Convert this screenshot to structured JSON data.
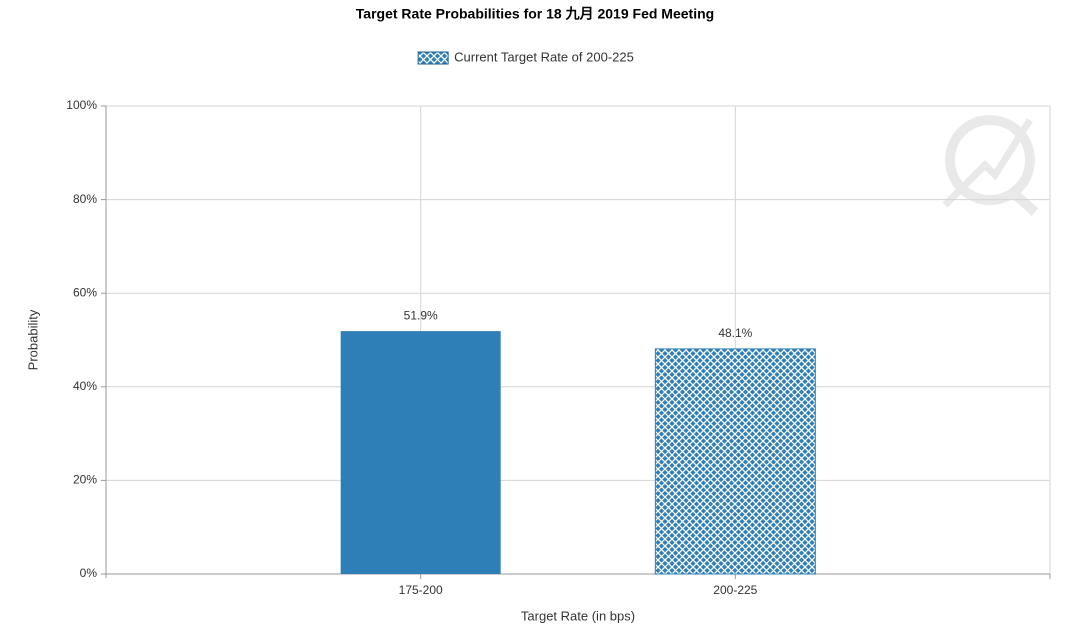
{
  "chart_data": {
    "type": "bar",
    "title": "Target Rate Probabilities for 18 九月 2019 Fed Meeting",
    "legend": {
      "label": "Current Target Rate of 200-225",
      "hatched": true
    },
    "x_label": "Target Rate (in bps)",
    "y_label": "Probability",
    "categories": [
      "175-200",
      "200-225"
    ],
    "values": [
      51.9,
      48.1
    ],
    "value_labels": [
      "51.9%",
      "48.1%"
    ],
    "hatched": [
      false,
      true
    ],
    "color": "#2e7fb8",
    "ylim": [
      0,
      100
    ],
    "yticks": [
      {
        "value": 0,
        "label": "0%"
      },
      {
        "value": 20,
        "label": "20%"
      },
      {
        "value": 40,
        "label": "40%"
      },
      {
        "value": 60,
        "label": "60%"
      },
      {
        "value": 80,
        "label": "80%"
      },
      {
        "value": 100,
        "label": "100%"
      }
    ],
    "grid": true
  }
}
